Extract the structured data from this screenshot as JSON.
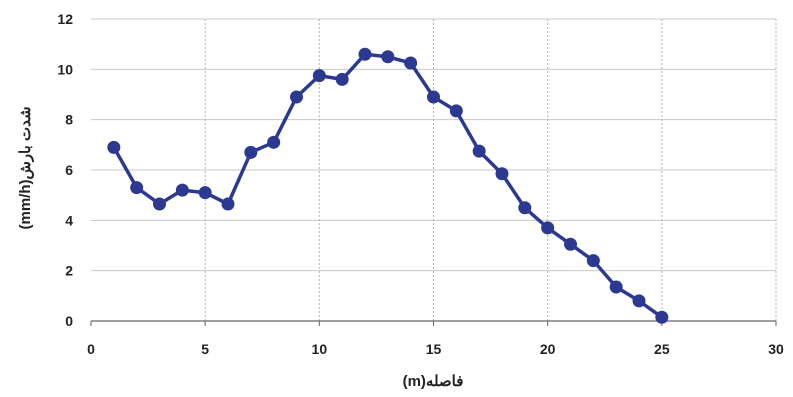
{
  "chart_data": {
    "type": "line",
    "title": "",
    "xlabel": "فاصله(m)",
    "ylabel": "شدت بارش(mm/h)",
    "xlim": [
      0,
      30
    ],
    "ylim": [
      0,
      12
    ],
    "x_ticks": [
      0,
      5,
      10,
      15,
      20,
      25,
      30
    ],
    "y_ticks": [
      0,
      2,
      4,
      6,
      8,
      10,
      12
    ],
    "grid": true,
    "legend": "none",
    "series": [
      {
        "color": "#2b3990",
        "x": [
          1,
          2,
          3,
          4,
          5,
          6,
          7,
          8,
          9,
          10,
          11,
          12,
          13,
          14,
          15,
          16,
          17,
          18,
          19,
          20,
          21,
          22,
          23,
          24,
          25
        ],
        "y": [
          6.9,
          5.3,
          4.65,
          5.2,
          5.1,
          4.65,
          6.7,
          7.1,
          8.9,
          9.75,
          9.6,
          10.6,
          10.5,
          10.25,
          8.9,
          8.35,
          6.75,
          5.85,
          4.5,
          3.7,
          3.05,
          2.4,
          1.35,
          0.8,
          0.15
        ]
      }
    ]
  }
}
